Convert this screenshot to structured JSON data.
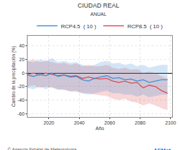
{
  "chart_data": {
    "type": "line",
    "title": "CIUDAD REAL",
    "subtitle": "ANUAL",
    "x_label": "Año",
    "y_label": "Cambio de la precipitación (%)",
    "x": [
      2006,
      2010,
      2014,
      2018,
      2022,
      2026,
      2030,
      2034,
      2038,
      2042,
      2046,
      2050,
      2054,
      2058,
      2062,
      2066,
      2070,
      2074,
      2078,
      2082,
      2086,
      2090,
      2094,
      2098
    ],
    "series": [
      {
        "name": "RCP8.5  ( 10 )",
        "color": "#e0474c",
        "values": [
          -2,
          0,
          -3,
          0,
          -2,
          -4,
          -3,
          -5,
          -4,
          -8,
          -6,
          -8,
          -9,
          -8,
          -12,
          -14,
          -12,
          -15,
          -14,
          -22,
          -18,
          -20,
          -26,
          -30
        ],
        "lower": [
          -20,
          -18,
          -22,
          -20,
          -22,
          -24,
          -25,
          -27,
          -28,
          -30,
          -30,
          -32,
          -33,
          -34,
          -38,
          -40,
          -38,
          -42,
          -44,
          -48,
          -45,
          -48,
          -52,
          -55
        ],
        "upper": [
          18,
          20,
          16,
          18,
          16,
          14,
          15,
          12,
          14,
          10,
          12,
          10,
          10,
          12,
          8,
          6,
          8,
          5,
          6,
          0,
          2,
          0,
          -5,
          -8
        ]
      },
      {
        "name": "RCP4.5  ( 10 )",
        "color": "#3b8fd6",
        "values": [
          -3,
          -5,
          -2,
          -4,
          0,
          -5,
          -3,
          -6,
          -5,
          -10,
          -12,
          -8,
          -6,
          -4,
          -8,
          -7,
          -10,
          -9,
          -12,
          -10,
          -14,
          -12,
          -10,
          -10
        ],
        "lower": [
          -22,
          -24,
          -20,
          -24,
          -20,
          -25,
          -24,
          -27,
          -26,
          -30,
          -32,
          -30,
          -28,
          -26,
          -30,
          -30,
          -32,
          -32,
          -35,
          -32,
          -36,
          -34,
          -32,
          -32
        ],
        "upper": [
          18,
          16,
          20,
          18,
          22,
          16,
          18,
          15,
          16,
          12,
          10,
          12,
          16,
          18,
          14,
          15,
          12,
          14,
          10,
          12,
          8,
          10,
          12,
          12
        ]
      }
    ],
    "xlim": [
      2006,
      2101
    ],
    "xticks": [
      2020,
      2040,
      2060,
      2080,
      2100
    ],
    "ylim": [
      -65,
      55
    ],
    "yticks": [
      -60,
      -40,
      -20,
      0,
      20,
      40
    ],
    "grid": true,
    "legend": "top",
    "annotations": [
      "© Agencia Estatal de Meteorología",
      "AEMet"
    ]
  }
}
